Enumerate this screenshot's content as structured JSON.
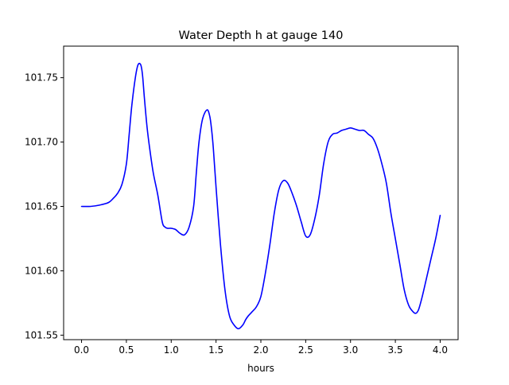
{
  "chart_data": {
    "type": "line",
    "title": "Water Depth h at gauge 140",
    "xlabel": "hours",
    "ylabel": "",
    "xlim": [
      -0.2,
      4.2
    ],
    "ylim": [
      101.5465,
      101.7745
    ],
    "xticks": [
      {
        "value": 0.0,
        "label": "0.0"
      },
      {
        "value": 0.5,
        "label": "0.5"
      },
      {
        "value": 1.0,
        "label": "1.0"
      },
      {
        "value": 1.5,
        "label": "1.5"
      },
      {
        "value": 2.0,
        "label": "2.0"
      },
      {
        "value": 2.5,
        "label": "2.5"
      },
      {
        "value": 3.0,
        "label": "3.0"
      },
      {
        "value": 3.5,
        "label": "3.5"
      },
      {
        "value": 4.0,
        "label": "4.0"
      }
    ],
    "yticks": [
      {
        "value": 101.55,
        "label": "101.55"
      },
      {
        "value": 101.6,
        "label": "101.60"
      },
      {
        "value": 101.65,
        "label": "101.65"
      },
      {
        "value": 101.7,
        "label": "101.70"
      },
      {
        "value": 101.75,
        "label": "101.75"
      }
    ],
    "grid": false,
    "legend": "none",
    "series": [
      {
        "color": "#0000ff",
        "x": [
          0.0,
          0.1,
          0.2,
          0.3,
          0.35,
          0.4,
          0.45,
          0.5,
          0.53,
          0.56,
          0.6,
          0.63,
          0.66,
          0.68,
          0.7,
          0.73,
          0.76,
          0.8,
          0.85,
          0.9,
          0.93,
          0.96,
          1.0,
          1.05,
          1.1,
          1.15,
          1.2,
          1.25,
          1.28,
          1.31,
          1.35,
          1.4,
          1.43,
          1.45,
          1.47,
          1.5,
          1.55,
          1.6,
          1.65,
          1.7,
          1.75,
          1.8,
          1.83,
          1.86,
          1.9,
          1.95,
          2.0,
          2.05,
          2.1,
          2.15,
          2.2,
          2.25,
          2.3,
          2.35,
          2.4,
          2.45,
          2.5,
          2.55,
          2.6,
          2.65,
          2.7,
          2.75,
          2.8,
          2.85,
          2.9,
          2.95,
          3.0,
          3.05,
          3.1,
          3.15,
          3.2,
          3.25,
          3.3,
          3.35,
          3.4,
          3.45,
          3.5,
          3.55,
          3.6,
          3.65,
          3.7,
          3.73,
          3.76,
          3.8,
          3.85,
          3.9,
          3.95,
          4.0
        ],
        "y": [
          101.65,
          101.65,
          101.651,
          101.653,
          101.656,
          101.66,
          101.667,
          101.683,
          101.705,
          101.728,
          101.75,
          101.76,
          101.76,
          101.752,
          101.735,
          101.712,
          101.695,
          101.676,
          101.659,
          101.638,
          101.634,
          101.633,
          101.633,
          101.632,
          101.629,
          101.628,
          101.634,
          101.65,
          101.676,
          101.7,
          101.718,
          101.725,
          101.72,
          101.71,
          101.695,
          101.665,
          101.62,
          101.585,
          101.565,
          101.558,
          101.555,
          101.558,
          101.562,
          101.565,
          101.568,
          101.572,
          101.58,
          101.598,
          101.62,
          101.645,
          101.663,
          101.67,
          101.668,
          101.66,
          101.65,
          101.638,
          101.627,
          101.628,
          101.64,
          101.658,
          101.683,
          101.7,
          101.706,
          101.707,
          101.709,
          101.71,
          101.711,
          101.71,
          101.709,
          101.709,
          101.706,
          101.703,
          101.695,
          101.683,
          101.668,
          101.645,
          101.625,
          101.605,
          101.585,
          101.573,
          101.568,
          101.567,
          101.57,
          101.58,
          101.595,
          101.61,
          101.625,
          101.643
        ]
      }
    ]
  }
}
